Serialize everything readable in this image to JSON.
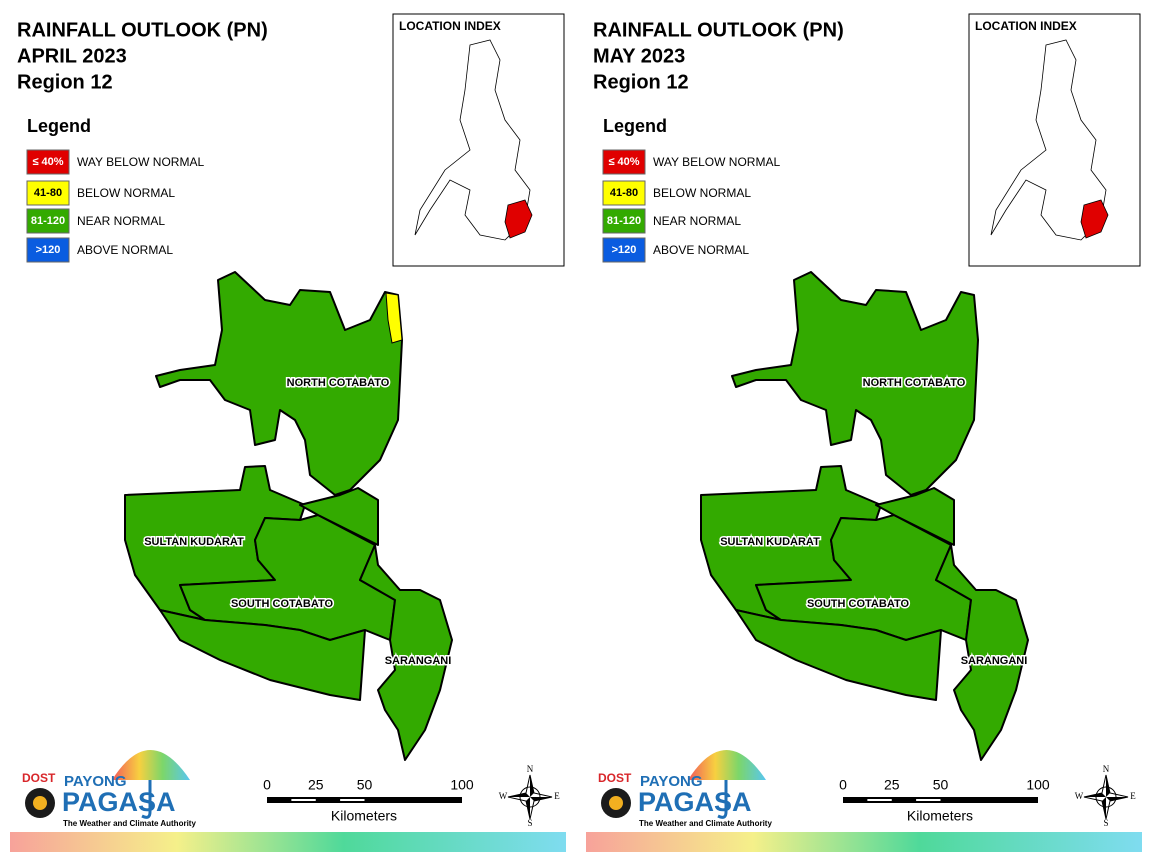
{
  "panels": [
    {
      "title": "RAINFALL OUTLOOK (PN)",
      "month": "APRIL 2023",
      "region": "Region 12",
      "legend": {
        "title": "Legend",
        "items": [
          {
            "range": "≤ 40%",
            "label": "WAY BELOW NORMAL",
            "color": "#e00000"
          },
          {
            "range": "41-80",
            "label": "BELOW NORMAL",
            "color": "#ffff00"
          },
          {
            "range": "81-120",
            "label": "NEAR NORMAL",
            "color": "#33aa00"
          },
          {
            "range": ">120",
            "label": "ABOVE NORMAL",
            "color": "#0a5ce0"
          }
        ]
      },
      "location_index": "LOCATION INDEX",
      "provinces": [
        "NORTH COTABATO",
        "SULTAN KUDARAT",
        "SOUTH COTABATO",
        "SARANGANI"
      ],
      "scale": {
        "ticks": [
          0,
          25,
          50,
          100
        ],
        "unit": "Kilometers"
      },
      "compass": [
        "N",
        "E",
        "S",
        "W"
      ],
      "logo": {
        "agency": "DOST",
        "brand": "PAYONG",
        "name": "PAGASA",
        "tagline": "The Weather and Climate Authority"
      }
    },
    {
      "title": "RAINFALL OUTLOOK (PN)",
      "month": "MAY 2023",
      "region": "Region 12",
      "legend": {
        "title": "Legend",
        "items": [
          {
            "range": "≤ 40%",
            "label": "WAY BELOW NORMAL",
            "color": "#e00000"
          },
          {
            "range": "41-80",
            "label": "BELOW NORMAL",
            "color": "#ffff00"
          },
          {
            "range": "81-120",
            "label": "NEAR NORMAL",
            "color": "#33aa00"
          },
          {
            "range": ">120",
            "label": "ABOVE NORMAL",
            "color": "#0a5ce0"
          }
        ]
      },
      "location_index": "LOCATION INDEX",
      "provinces": [
        "NORTH COTABATO",
        "SULTAN KUDARAT",
        "SOUTH COTABATO",
        "SARANGANI"
      ],
      "scale": {
        "ticks": [
          0,
          25,
          50,
          100
        ],
        "unit": "Kilometers"
      },
      "compass": [
        "N",
        "E",
        "S",
        "W"
      ],
      "logo": {
        "agency": "DOST",
        "brand": "PAYONG",
        "name": "PAGASA",
        "tagline": "The Weather and Climate Authority"
      }
    }
  ]
}
